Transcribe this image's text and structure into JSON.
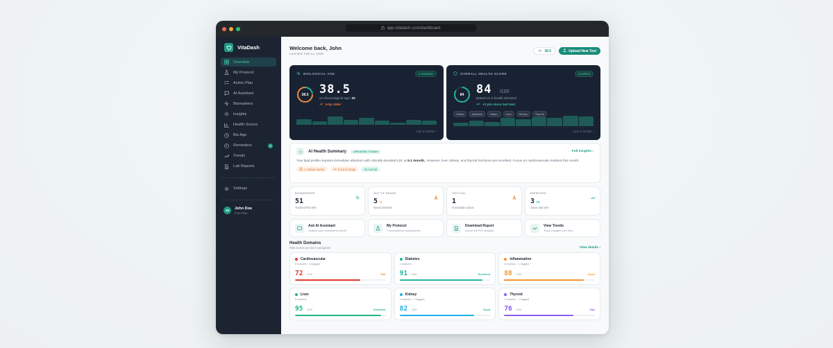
{
  "browser": {
    "url": "app.vitadash.com/dashboard",
    "traffic_lights": [
      "#f06b50",
      "#f5a33c",
      "#2fbf71"
    ]
  },
  "sidebar": {
    "brand": "VitaDash",
    "items": [
      {
        "label": "Overview",
        "icon": "grid-icon",
        "active": true
      },
      {
        "label": "My Protocol",
        "icon": "flask-icon"
      },
      {
        "label": "Action Plan",
        "icon": "checklist-icon"
      },
      {
        "label": "AI Assistant",
        "icon": "chat-icon"
      },
      {
        "label": "Biomarkers",
        "icon": "pulse-icon"
      },
      {
        "label": "Insights",
        "icon": "sparkle-icon"
      },
      {
        "label": "Health Scores",
        "icon": "bar-chart-icon"
      },
      {
        "label": "Bio Age",
        "icon": "clock-icon"
      },
      {
        "label": "Reminders",
        "icon": "alarm-icon",
        "badge": "3"
      },
      {
        "label": "Trends",
        "icon": "trend-icon"
      },
      {
        "label": "Lab Reports",
        "icon": "document-icon"
      }
    ],
    "settings": "Settings",
    "user": {
      "initials": "JD",
      "name": "John Doe",
      "plan": "Free Plan"
    }
  },
  "header": {
    "welcome": "Welcome back, John",
    "last_test": "Last test: Feb 12, 2026",
    "score_pill": "38.5",
    "upload_label": "Upload New Test"
  },
  "bio_age": {
    "title": "BIOLOGICAL AGE",
    "tag": "AI Estimate",
    "ring_value": "38.5",
    "value": "38.5",
    "comparison_label": "vs chronological age:",
    "chronological_age": "32",
    "delta": "6.5y older",
    "footer": "Last 6 months",
    "bars": [
      55,
      38,
      85,
      50,
      70,
      40,
      25,
      50,
      45
    ],
    "color": "#f08c3c"
  },
  "health_score": {
    "title": "OVERALL HEALTH SCORE",
    "tag": "Excellent",
    "ring_value": "84",
    "value": "84",
    "unit": "/100",
    "based_on": "Based on 6 health domains",
    "delta": "+2 pts since last test",
    "domains": [
      "Cardio",
      "Diabetes",
      "Inflam.",
      "Liver",
      "Kidney",
      "Thyroid"
    ],
    "footer": "Last 6 months",
    "bars": [
      30,
      50,
      40,
      75,
      62,
      82,
      72,
      95,
      90
    ],
    "color": "#22b59a"
  },
  "ai_summary": {
    "title": "AI Health Summary",
    "badge": "UPDATED TODAY",
    "link": "Full insights",
    "text_before": "Your lipid profile requires immediate attention with critically elevated LDL at ",
    "highlight": "5.1 mmol/L",
    "text_after": ". However, liver, kidney, and thyroid functions are excellent. Focus on cardiovascular markers this month.",
    "chips": [
      {
        "label": "1 critical marker",
        "type": "critical"
      },
      {
        "label": "5 out of range",
        "type": "warning"
      },
      {
        "label": "45 normal",
        "type": "normal"
      }
    ]
  },
  "stats": [
    {
      "label": "BIOMARKERS",
      "value": "51",
      "delta": "",
      "sub": "Tracked this test",
      "icon": "pulse-icon",
      "icon_color": "#22b59a"
    },
    {
      "label": "OUT OF RANGE",
      "value": "5",
      "delta": "-2",
      "sub": "Need attention",
      "icon": "flask-icon",
      "icon_color": "#f08c3c",
      "delta_color": "#f08c3c"
    },
    {
      "label": "CRITICAL",
      "value": "1",
      "delta": "",
      "sub": "Immediate action",
      "icon": "flask-icon",
      "icon_color": "#f08c3c"
    },
    {
      "label": "IMPROVED",
      "value": "3",
      "delta": "+3",
      "sub": "Since last test",
      "icon": "trend-icon",
      "icon_color": "#22b59a",
      "delta_color": "#22b59a"
    }
  ],
  "actions": [
    {
      "title": "Ask AI Assistant",
      "sub": "Analyze your biomarkers with AI",
      "icon": "chat-icon"
    },
    {
      "title": "My Protocol",
      "sub": "7 personalized supplements",
      "icon": "flask-icon"
    },
    {
      "title": "Download Report",
      "sub": "Export full PDF analysis",
      "icon": "document-icon"
    },
    {
      "title": "View Trends",
      "sub": "Track changes over time",
      "icon": "trend-icon"
    }
  ],
  "domains": {
    "title": "Health Domains",
    "subtitle": "Risk scores across 6 categories",
    "link": "View details",
    "items": [
      {
        "name": "Cardiovascular",
        "meta": "8 markers · 3 flagged",
        "score": "72",
        "max": "/100",
        "status": "Fair",
        "color": "#e5372b",
        "status_color": "#f08c3c",
        "pct": 72
      },
      {
        "name": "Diabetes",
        "meta": "4 markers",
        "score": "91",
        "max": "/100",
        "status": "Excellent",
        "color": "#22b59a",
        "status_color": "#22b59a",
        "pct": 91
      },
      {
        "name": "Inflammation",
        "meta": "5 markers · 1 flagged",
        "score": "88",
        "max": "/100",
        "status": "Good",
        "color": "#f5962e",
        "status_color": "#f5962e",
        "pct": 88
      },
      {
        "name": "Liver",
        "meta": "6 markers",
        "score": "95",
        "max": "/100",
        "status": "Excellent",
        "color": "#1fb87d",
        "status_color": "#22b59a",
        "pct": 95
      },
      {
        "name": "Kidney",
        "meta": "5 markers · 1 flagged",
        "score": "82",
        "max": "/100",
        "status": "Good",
        "color": "#1eaee8",
        "status_color": "#22b59a",
        "pct": 82
      },
      {
        "name": "Thyroid",
        "meta": "2 markers · 1 flagged",
        "score": "76",
        "max": "/100",
        "status": "Fair",
        "color": "#8b5cf6",
        "status_color": "#8b5cf6",
        "pct": 76
      }
    ]
  }
}
